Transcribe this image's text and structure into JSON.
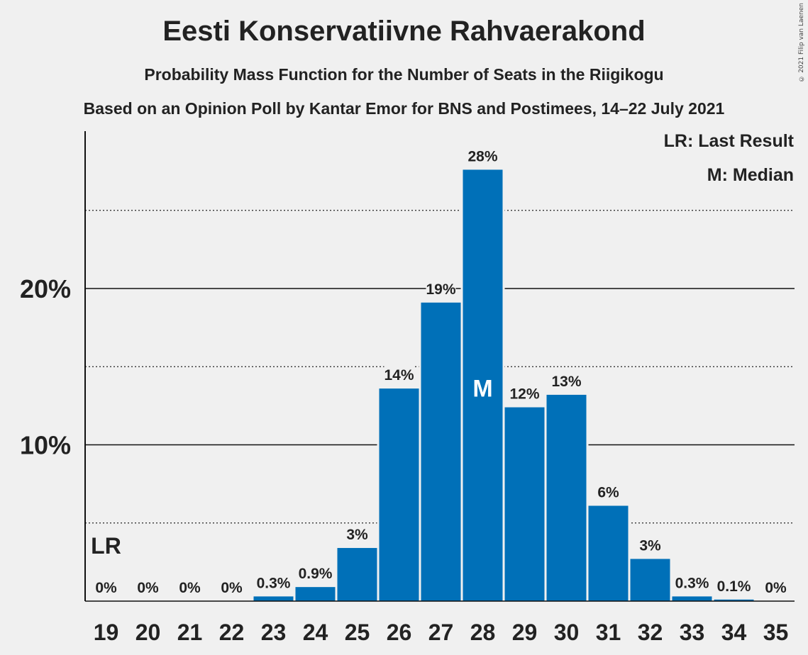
{
  "header": {
    "title": "Eesti Konservatiivne Rahvaerakond",
    "subtitle1": "Probability Mass Function for the Number of Seats in the Riigikogu",
    "subtitle2": "Based on an Opinion Poll by Kantar Emor for BNS and Postimees, 14–22 July 2021"
  },
  "legend": {
    "last_result": "LR: Last Result",
    "median": "M: Median"
  },
  "copyright": "© 2021 Filip van Laenen",
  "colors": {
    "bar": "#0070b8",
    "background": "#f0f0f0"
  },
  "chart_data": {
    "type": "bar",
    "categories": [
      "19",
      "20",
      "21",
      "22",
      "23",
      "24",
      "25",
      "26",
      "27",
      "28",
      "29",
      "30",
      "31",
      "32",
      "33",
      "34",
      "35"
    ],
    "values": [
      0,
      0,
      0,
      0,
      0.3,
      0.9,
      3.4,
      13.6,
      19.1,
      27.6,
      12.4,
      13.2,
      6.1,
      2.7,
      0.3,
      0.1,
      0
    ],
    "data_labels": [
      "0%",
      "0%",
      "0%",
      "0%",
      "0.3%",
      "0.9%",
      "3%",
      "14%",
      "19%",
      "28%",
      "12%",
      "13%",
      "6%",
      "3%",
      "0.3%",
      "0.1%",
      "0%"
    ],
    "yticks": [
      10,
      20
    ],
    "ytick_labels": [
      "10%",
      "20%"
    ],
    "minor_gridlines": [
      5,
      15,
      25
    ],
    "ylim": [
      0,
      30
    ],
    "last_result": {
      "category": "19",
      "label": "LR"
    },
    "median": {
      "category": "28",
      "label": "M"
    },
    "legend_position": "top-right"
  }
}
